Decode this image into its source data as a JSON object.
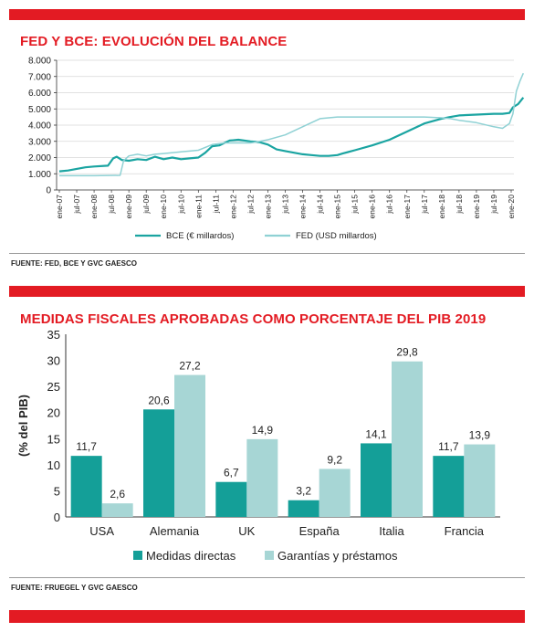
{
  "header": {
    "chart1_title": "FED Y BCE: EVOLUCIÓN DEL BALANCE",
    "chart1_source": "FUENTE: FED, BCE Y GVC GAESCO",
    "chart2_title": "MEDIDAS FISCALES APROBADAS COMO PORCENTAJE DEL PIB 2019",
    "chart2_source": "FUENTE: FRUEGEL Y GVC GAESCO"
  },
  "colors": {
    "accent": "#e31b23",
    "bce": "#1aa4a1",
    "fed": "#8fd1d4",
    "direct": "#149f98",
    "guarantees": "#a7d6d5"
  },
  "chart_data": [
    {
      "type": "line",
      "title": "FED Y BCE: EVOLUCIÓN DEL BALANCE",
      "x": [
        "ene-07",
        "jul-07",
        "ene-08",
        "jul-08",
        "ene-09",
        "jul-09",
        "ene-10",
        "jul-10",
        "ene-11",
        "jul-11",
        "ene-12",
        "jul-12",
        "ene-13",
        "jul-13",
        "ene-14",
        "jul-14",
        "ene-15",
        "jul-15",
        "ene-16",
        "jul-16",
        "ene-17",
        "jul-17",
        "ene-18",
        "jul-18",
        "ene-19",
        "jul-19",
        "ene-20"
      ],
      "ylim": [
        0,
        8000
      ],
      "yticks": [
        0,
        1000,
        2000,
        3000,
        4000,
        5000,
        6000,
        7000,
        8000
      ],
      "ytick_labels": [
        "0",
        "1.000",
        "2.000",
        "3.000",
        "4.000",
        "5.000",
        "6.000",
        "7.000",
        "8.000"
      ],
      "series": [
        {
          "name": "BCE (€ millardos)",
          "points": [
            [
              0,
              1150
            ],
            [
              0.5,
              1200
            ],
            [
              1,
              1300
            ],
            [
              1.5,
              1400
            ],
            [
              2,
              1450
            ],
            [
              2.8,
              1500
            ],
            [
              3.1,
              1950
            ],
            [
              3.3,
              2050
            ],
            [
              3.6,
              1850
            ],
            [
              4,
              1800
            ],
            [
              4.5,
              1900
            ],
            [
              5,
              1850
            ],
            [
              5.5,
              2050
            ],
            [
              6,
              1900
            ],
            [
              6.5,
              2000
            ],
            [
              7,
              1900
            ],
            [
              7.5,
              1950
            ],
            [
              8,
              2000
            ],
            [
              8.4,
              2300
            ],
            [
              8.8,
              2700
            ],
            [
              9.2,
              2750
            ],
            [
              9.5,
              2900
            ],
            [
              9.8,
              3050
            ],
            [
              10.3,
              3100
            ],
            [
              11,
              3000
            ],
            [
              11.5,
              2950
            ],
            [
              12,
              2800
            ],
            [
              12.5,
              2500
            ],
            [
              13,
              2400
            ],
            [
              13.5,
              2300
            ],
            [
              14,
              2200
            ],
            [
              14.5,
              2150
            ],
            [
              15,
              2100
            ],
            [
              15.5,
              2100
            ],
            [
              16,
              2150
            ],
            [
              16.3,
              2250
            ],
            [
              17,
              2450
            ],
            [
              18,
              2750
            ],
            [
              19,
              3100
            ],
            [
              20,
              3600
            ],
            [
              21,
              4100
            ],
            [
              22,
              4400
            ],
            [
              22.5,
              4500
            ],
            [
              23,
              4600
            ],
            [
              24,
              4650
            ],
            [
              25,
              4700
            ],
            [
              25.5,
              4700
            ],
            [
              25.9,
              4750
            ],
            [
              26.1,
              5100
            ],
            [
              26.4,
              5300
            ],
            [
              26.7,
              5700
            ]
          ]
        },
        {
          "name": "FED (USD millardos)",
          "points": [
            [
              0,
              880
            ],
            [
              1,
              880
            ],
            [
              2,
              880
            ],
            [
              3.5,
              900
            ],
            [
              3.7,
              1800
            ],
            [
              4,
              2100
            ],
            [
              4.5,
              2200
            ],
            [
              5,
              2100
            ],
            [
              5.5,
              2200
            ],
            [
              6,
              2250
            ],
            [
              7,
              2350
            ],
            [
              8,
              2450
            ],
            [
              8.8,
              2800
            ],
            [
              9.5,
              2900
            ],
            [
              10,
              2900
            ],
            [
              11,
              2900
            ],
            [
              11.3,
              2950
            ],
            [
              12,
              3100
            ],
            [
              13,
              3400
            ],
            [
              14,
              3900
            ],
            [
              15,
              4400
            ],
            [
              16,
              4500
            ],
            [
              17,
              4500
            ],
            [
              18,
              4500
            ],
            [
              19,
              4500
            ],
            [
              20,
              4500
            ],
            [
              21,
              4500
            ],
            [
              22,
              4450
            ],
            [
              22.5,
              4400
            ],
            [
              23,
              4300
            ],
            [
              24,
              4150
            ],
            [
              25,
              3900
            ],
            [
              25.5,
              3800
            ],
            [
              25.9,
              4100
            ],
            [
              26.1,
              4700
            ],
            [
              26.3,
              6100
            ],
            [
              26.5,
              6700
            ],
            [
              26.7,
              7200
            ]
          ]
        }
      ],
      "legend_position": "bottom-center"
    },
    {
      "type": "bar",
      "title": "MEDIDAS FISCALES APROBADAS COMO PORCENTAJE DEL PIB 2019",
      "categories": [
        "USA",
        "Alemania",
        "UK",
        "España",
        "Italia",
        "Francia"
      ],
      "ylabel": "(% del PIB)",
      "ylim": [
        0,
        35
      ],
      "yticks": [
        0,
        5,
        10,
        15,
        20,
        25,
        30,
        35
      ],
      "series": [
        {
          "name": "Medidas directas",
          "values": [
            11.7,
            20.6,
            6.7,
            3.2,
            14.1,
            11.7
          ],
          "labels": [
            "11,7",
            "20,6",
            "6,7",
            "3,2",
            "14,1",
            "11,7"
          ]
        },
        {
          "name": "Garantías y préstamos",
          "values": [
            2.6,
            27.2,
            14.9,
            9.2,
            29.8,
            13.9
          ],
          "labels": [
            "2,6",
            "27,2",
            "14,9",
            "9,2",
            "29,8",
            "13,9"
          ]
        }
      ],
      "legend_position": "bottom-center"
    }
  ]
}
